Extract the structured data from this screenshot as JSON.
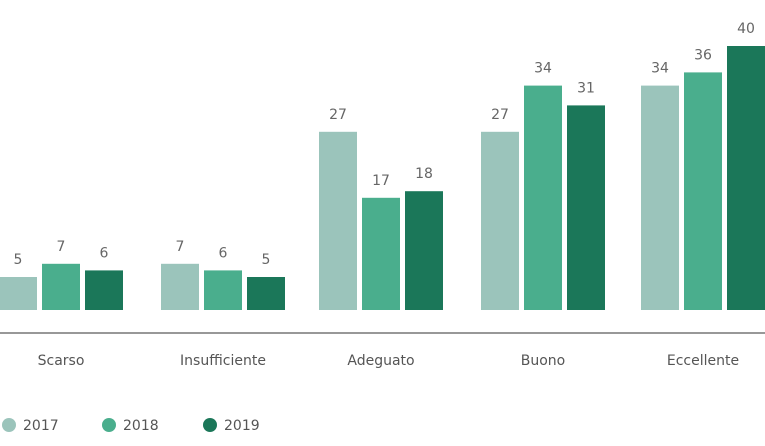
{
  "chart_data": {
    "type": "bar",
    "categories": [
      "Scarso",
      "Insufficiente",
      "Adeguato",
      "Buono",
      "Eccellente"
    ],
    "series": [
      {
        "name": "2017",
        "values": [
          5,
          7,
          27,
          27,
          34
        ],
        "color": "#9bc4bb"
      },
      {
        "name": "2018",
        "values": [
          7,
          6,
          17,
          34,
          36
        ],
        "color": "#4aae8d"
      },
      {
        "name": "2019",
        "values": [
          6,
          5,
          18,
          31,
          40
        ],
        "color": "#1b7759"
      }
    ],
    "ylim": [
      0,
      40
    ],
    "grid": false,
    "legend": "bottom-left",
    "data_labels": true,
    "colors": {
      "axis": "#777777",
      "label_text": "#666666"
    }
  }
}
